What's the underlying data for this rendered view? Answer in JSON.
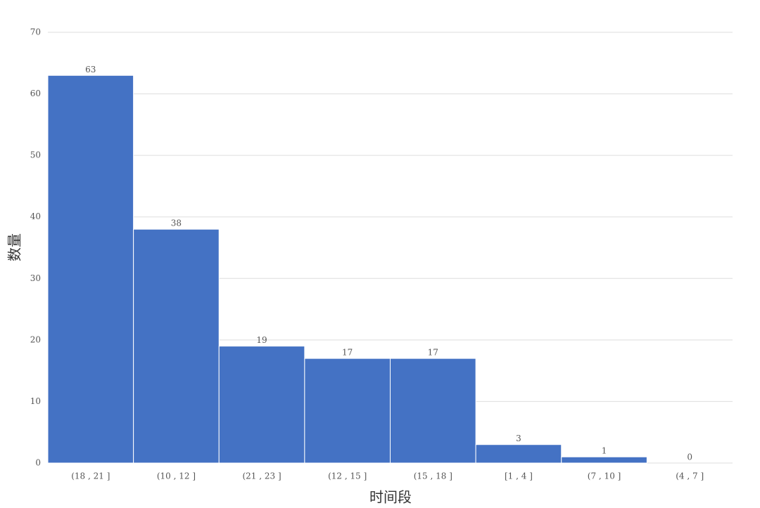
{
  "chart_data": {
    "type": "bar",
    "x_label": "时间段",
    "y_label": "数量",
    "categories": [
      "(18 , 21 ]",
      "(10 , 12 ]",
      "(21 , 23 ]",
      "(12 , 15 ]",
      "(15 , 18 ]",
      "[1 , 4 ]",
      "(7 , 10 ]",
      "(4 , 7 ]"
    ],
    "values": [
      63,
      38,
      19,
      17,
      17,
      3,
      1,
      0
    ],
    "color": "#4472c4",
    "ylim": [
      0,
      70
    ],
    "yticks": [
      0,
      10,
      20,
      30,
      40,
      50,
      60,
      70
    ],
    "grid": true
  }
}
